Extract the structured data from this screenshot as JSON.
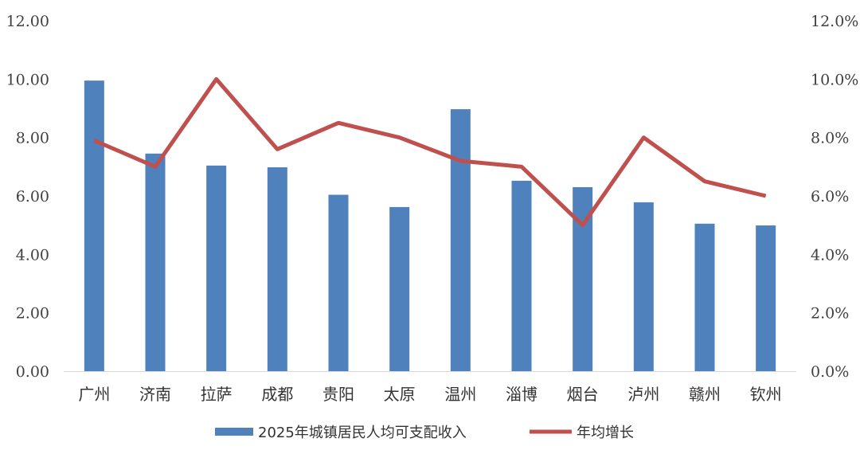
{
  "chart_data": {
    "type": "bar+line",
    "categories": [
      "广州",
      "济南",
      "拉萨",
      "成都",
      "贵阳",
      "太原",
      "温州",
      "淄博",
      "烟台",
      "泸州",
      "赣州",
      "钦州"
    ],
    "series": [
      {
        "name": "2025年城镇居民人均可支配收入",
        "type": "bar",
        "axis": "left",
        "color": "#4F81BD",
        "values": [
          9.95,
          7.45,
          7.04,
          6.98,
          6.04,
          5.62,
          8.97,
          6.52,
          6.3,
          5.78,
          5.05,
          4.99
        ]
      },
      {
        "name": "年均增长",
        "type": "line",
        "axis": "right",
        "color": "#C0504D",
        "values": [
          7.9,
          7.0,
          10.0,
          7.6,
          8.5,
          8.0,
          7.2,
          7.0,
          5.0,
          8.0,
          6.5,
          6.0
        ]
      }
    ],
    "left_axis": {
      "ylim": [
        0,
        12
      ],
      "ticks": [
        "0.00",
        "2.00",
        "4.00",
        "6.00",
        "8.00",
        "10.00",
        "12.00"
      ]
    },
    "right_axis": {
      "ylim": [
        0,
        12
      ],
      "unit": "%",
      "ticks": [
        "0.0%",
        "2.0%",
        "4.0%",
        "6.0%",
        "8.0%",
        "10.0%",
        "12.0%"
      ]
    },
    "grid": false,
    "legend": "bottom"
  }
}
